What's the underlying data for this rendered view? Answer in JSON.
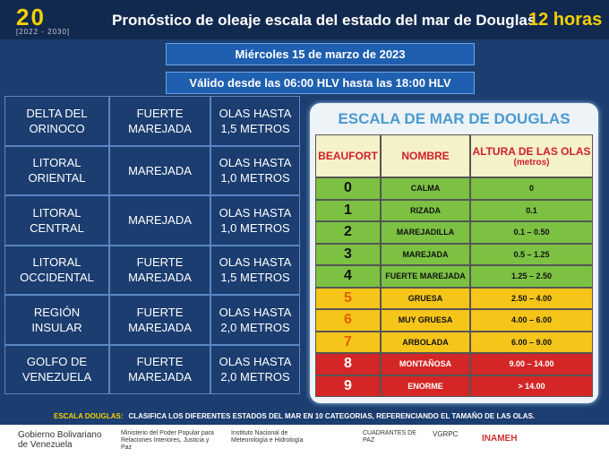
{
  "header": {
    "logo_mark": "20",
    "logo_years": "[2022 - 2030]",
    "title": "Pronóstico de oleaje escala del estado del mar de Douglas",
    "highlight": "12 horas"
  },
  "date": "Miércoles 15 de marzo de 2023",
  "validity": "Válido desde las 06:00 HLV hasta las 18:00 HLV",
  "forecast": {
    "rows": [
      [
        "DELTA DEL ORINOCO",
        "FUERTE MAREJADA",
        "OLAS HASTA 1,5 METROS"
      ],
      [
        "LITORAL ORIENTAL",
        "MAREJADA",
        "OLAS HASTA 1,0 METROS"
      ],
      [
        "LITORAL CENTRAL",
        "MAREJADA",
        "OLAS HASTA 1,0 METROS"
      ],
      [
        "LITORAL OCCIDENTAL",
        "FUERTE MAREJADA",
        "OLAS HASTA 1,5 METROS"
      ],
      [
        "REGIÓN INSULAR",
        "FUERTE MAREJADA",
        "OLAS HASTA 2,0 METROS"
      ],
      [
        "GOLFO DE VENEZUELA",
        "FUERTE MAREJADA",
        "OLAS HASTA 2,0 METROS"
      ]
    ]
  },
  "scale": {
    "title": "ESCALA DE MAR DE DOUGLAS",
    "columns": [
      "BEAUFORT",
      "NOMBRE",
      "ALTURA DE LAS OLAS"
    ],
    "unit": "(metros)",
    "rows": [
      [
        "0",
        "CALMA",
        "0"
      ],
      [
        "1",
        "RIZADA",
        "0.1"
      ],
      [
        "2",
        "MAREJADILLA",
        "0.1 – 0.50"
      ],
      [
        "3",
        "MAREJADA",
        "0.5 – 1.25"
      ],
      [
        "4",
        "FUERTE MAREJADA",
        "1.25 – 2.50"
      ],
      [
        "5",
        "GRUESA",
        "2.50 – 4.00"
      ],
      [
        "6",
        "MUY GRUESA",
        "4.00 – 6.00"
      ],
      [
        "7",
        "ARBOLADA",
        "6.00 – 9.00"
      ],
      [
        "8",
        "MONTAÑOSA",
        "9.00 – 14.00"
      ],
      [
        "9",
        "ENORME",
        "> 14.00"
      ]
    ]
  },
  "note": {
    "label": "ESCALA DOUGLAS:",
    "text": "CLASIFICA LOS DIFERENTES ESTADOS DEL MAR EN 10 CATEGORIAS, REFERENCIANDO EL TAMAÑO DE LAS OLAS."
  },
  "footer": {
    "logos": [
      "Gobierno Bolivariano de Venezuela",
      "Ministerio del Poder Popular para Relaciones Interiores, Justicia y Paz",
      "Instituto Nacional de Meteorología e Hidrología",
      "CUADRANTES DE PAZ",
      "VGRPC",
      "INAMEH"
    ]
  }
}
